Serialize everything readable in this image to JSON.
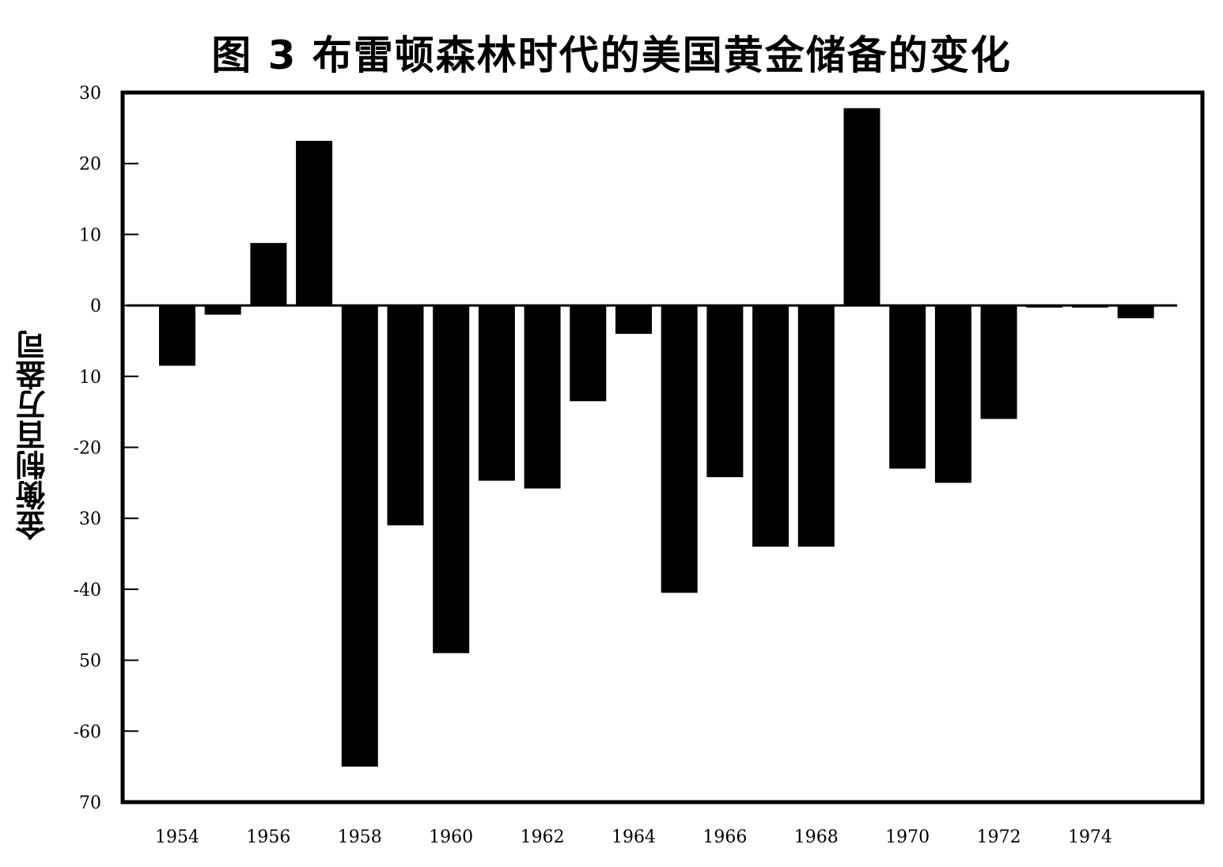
{
  "chart_data": {
    "type": "bar",
    "title": "图 3   布雷顿森林时代的美国黄金储备的变化",
    "ylabel": "金衡制百万盎司",
    "xlabel": "",
    "ylim": [
      -70,
      30
    ],
    "yticks": [
      30,
      20,
      10,
      0,
      -10,
      -20,
      -30,
      -40,
      -50,
      -60,
      -70
    ],
    "ytick_labels": [
      "30",
      "20",
      "10",
      "0",
      "10",
      "-20",
      "30",
      "-40",
      "50",
      "-60",
      "70"
    ],
    "xtick_labels": [
      "1954",
      "1956",
      "1958",
      "1960",
      "1962",
      "1964",
      "1966",
      "1968",
      "1970",
      "1972",
      "1974"
    ],
    "categories": [
      "1954",
      "1955",
      "1956",
      "1957",
      "1958",
      "1959",
      "1960",
      "1961",
      "1962",
      "1963",
      "1964",
      "1965",
      "1966",
      "1967",
      "1968",
      "1969",
      "1970",
      "1971",
      "1972",
      "1973",
      "1974",
      "1975"
    ],
    "values": [
      -8.5,
      -1.3,
      8.8,
      23.2,
      -65,
      -31,
      -49,
      -24.7,
      -25.8,
      -13.5,
      -4,
      -40.5,
      -24.2,
      -34,
      -34,
      27.8,
      -23,
      -25,
      -16,
      -0.3,
      -0.3,
      -1.8
    ],
    "grid": false,
    "colors": {
      "bar": "#000000",
      "axis": "#000000"
    }
  }
}
